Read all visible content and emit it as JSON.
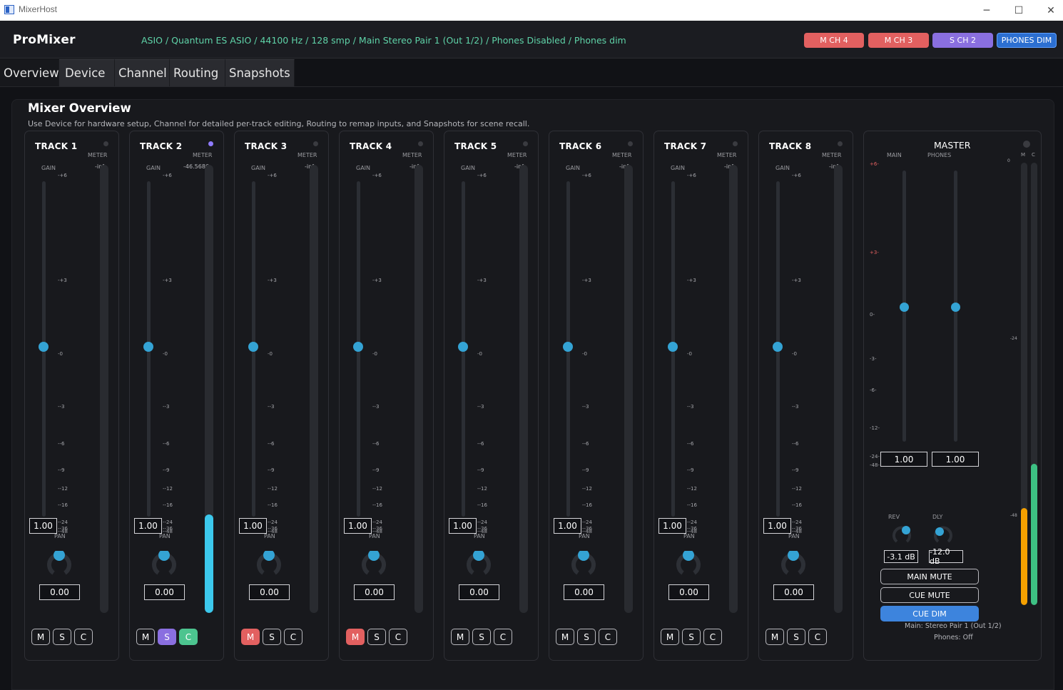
{
  "window": {
    "title": "MixerHost",
    "min": "─",
    "max": "☐",
    "close": "✕"
  },
  "header": {
    "brand": "ProMixer",
    "status": "ASIO / Quantum ES ASIO / 44100 Hz / 128 smp / Main Stereo Pair 1 (Out 1/2) / Phones Disabled / Phones dim",
    "chips": [
      "M CH 4",
      "M CH 3",
      "S CH 2",
      "PHONES DIM"
    ]
  },
  "tabs": [
    "Overview",
    "Device",
    "Channel",
    "Routing",
    "Snapshots"
  ],
  "overview": {
    "title": "Mixer Overview",
    "subtitle": "Use Device for hardware setup, Channel for detailed per-track editing, Routing to remap inputs, and Snapshots for scene recall."
  },
  "labels": {
    "meter": "METER",
    "gain": "GAIN",
    "pan": "PAN",
    "m": "M",
    "s": "S",
    "c": "C"
  },
  "scale": [
    "+6",
    "+3",
    "0",
    "-3",
    "-6",
    "-9",
    "-12",
    "-16",
    "-24",
    "-36",
    "-48"
  ],
  "tracks": [
    {
      "name": "TRACK 1",
      "meter_text": "-inf",
      "level": 0.0,
      "gain": "1.00",
      "pan": "0.00",
      "active": false,
      "mute": false,
      "solo": false,
      "cue": false
    },
    {
      "name": "TRACK 2",
      "meter_text": "-46.5686",
      "level": 0.22,
      "gain": "1.00",
      "pan": "0.00",
      "active": true,
      "mute": false,
      "solo": true,
      "cue": true
    },
    {
      "name": "TRACK 3",
      "meter_text": "-inf",
      "level": 0.0,
      "gain": "1.00",
      "pan": "0.00",
      "active": false,
      "mute": true,
      "solo": false,
      "cue": false
    },
    {
      "name": "TRACK 4",
      "meter_text": "-inf",
      "level": 0.0,
      "gain": "1.00",
      "pan": "0.00",
      "active": false,
      "mute": true,
      "solo": false,
      "cue": false
    },
    {
      "name": "TRACK 5",
      "meter_text": "-inf",
      "level": 0.0,
      "gain": "1.00",
      "pan": "0.00",
      "active": false,
      "mute": false,
      "solo": false,
      "cue": false
    },
    {
      "name": "TRACK 6",
      "meter_text": "-inf",
      "level": 0.0,
      "gain": "1.00",
      "pan": "0.00",
      "active": false,
      "mute": false,
      "solo": false,
      "cue": false
    },
    {
      "name": "TRACK 7",
      "meter_text": "-inf",
      "level": 0.0,
      "gain": "1.00",
      "pan": "0.00",
      "active": false,
      "mute": false,
      "solo": false,
      "cue": false
    },
    {
      "name": "TRACK 8",
      "meter_text": "-inf",
      "level": 0.0,
      "gain": "1.00",
      "pan": "0.00",
      "active": false,
      "mute": false,
      "solo": false,
      "cue": false
    }
  ],
  "master": {
    "title": "MASTER",
    "main_label": "MAIN",
    "phones_label": "PHONES",
    "meter_m": "M",
    "meter_c": "C",
    "scale": [
      "+6",
      "+3",
      "0",
      "-3",
      "-6",
      "-12",
      "-24",
      "-48"
    ],
    "meter_scale": [
      "0",
      "-24",
      "-48"
    ],
    "main_value": "1.00",
    "phones_value": "1.00",
    "rev_label": "REV",
    "dly_label": "DLY",
    "rev_value": "-3.1 dB",
    "dly_value": "-12.0 dB",
    "main_mute": "MAIN MUTE",
    "cue_mute": "CUE MUTE",
    "cue_dim": "CUE DIM",
    "info_main": "Main: Stereo Pair 1 (Out 1/2)",
    "info_phones": "Phones: Off",
    "meter_main_level": 0.22,
    "meter_cue_level": 0.32
  },
  "colors": {
    "accent": "#34a3d4",
    "meter": "#3cc8ec",
    "mute": "#e26060",
    "solo": "#8a6fe0",
    "cue": "#4cc48f",
    "status_text": "#5fd3a8",
    "meter_orange": "#f5a000",
    "meter_green": "#3dc083"
  }
}
